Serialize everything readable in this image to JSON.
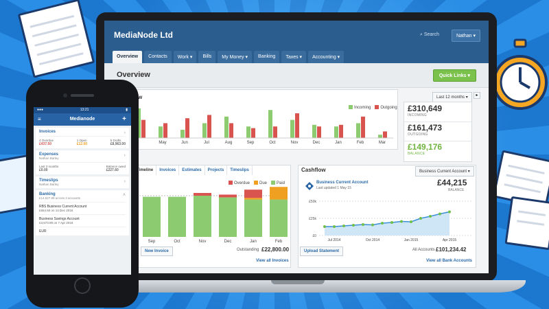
{
  "colors": {
    "accent": "#2b5d8f",
    "incoming": "#8dcb70",
    "outgoing": "#d9534f",
    "overdue": "#d9534f",
    "due": "#f0a020",
    "paid": "#8dcb70",
    "balance_green": "#6fb43f"
  },
  "app": {
    "title": "MediaNode Ltd",
    "search": "Search",
    "user": "Nathan"
  },
  "nav": [
    "Overview",
    "Contacts",
    "Work ▾",
    "Bills",
    "My Money ▾",
    "Banking",
    "Taxes ▾",
    "Accounting ▾"
  ],
  "page": {
    "title": "Overview",
    "quick_links": "Quick Links ▾"
  },
  "overview_panel": {
    "title": "w",
    "range": "Last 12 months",
    "legend_incoming": "Incoming",
    "legend_outgoing": "Outgoing",
    "stats": [
      {
        "value": "£310,649",
        "label": "INCOMING"
      },
      {
        "value": "£161,473",
        "label": "OUTGOING"
      },
      {
        "value": "£149,176",
        "label": "BALANCE"
      }
    ]
  },
  "chart_data": [
    {
      "type": "bar",
      "categories": [
        "",
        "May",
        "Jun",
        "Jul",
        "Aug",
        "Sep",
        "Oct",
        "Nov",
        "Dec",
        "Jan",
        "Feb",
        "Mar"
      ],
      "series": [
        {
          "name": "Incoming",
          "values": [
            9,
            3.5,
            2.5,
            4.5,
            6.5,
            3.5,
            8.5,
            5.5,
            4,
            3.5,
            4.5,
            1
          ]
        },
        {
          "name": "Outgoing",
          "values": [
            5.5,
            4.5,
            6,
            7,
            4.5,
            3,
            3.5,
            7.5,
            3.5,
            4,
            6.5,
            2
          ]
        }
      ]
    },
    {
      "type": "bar",
      "categories": [
        "",
        "Sep",
        "Oct",
        "Nov",
        "Dec",
        "Jan",
        "Feb"
      ],
      "series": [
        {
          "name": "Overdue",
          "values": [
            0,
            0,
            0,
            0.5,
            0.5,
            1.5,
            0
          ]
        },
        {
          "name": "Due",
          "values": [
            0,
            0,
            0,
            0,
            0,
            0.3,
            2.3
          ]
        },
        {
          "name": "Paid",
          "values": [
            8.3,
            7.3,
            7.3,
            7.5,
            7.2,
            6.8,
            6.8
          ]
        }
      ]
    },
    {
      "type": "line",
      "categories": [
        "",
        "Jul 2014",
        "",
        "",
        "",
        "Oct 2014",
        "",
        "",
        "",
        "Jan 2015",
        "",
        "",
        "",
        "Apr 2015"
      ],
      "yticks": [
        "£50k",
        "£25k",
        "£0"
      ],
      "series": [
        {
          "name": "",
          "values": [
            13,
            13,
            14,
            15,
            16,
            15.5,
            18,
            19,
            20.5,
            20,
            25,
            28,
            31.5,
            34.5
          ]
        }
      ]
    }
  ],
  "invoices_panel": {
    "tabs": [
      "Timeline",
      "Invoices",
      "Estimates",
      "Projects",
      "Timeslips"
    ],
    "legend": [
      "Overdue",
      "Due",
      "Paid"
    ],
    "new_invoice": "New Invoice",
    "outstanding_label": "Outstanding",
    "outstanding_value": "£22,800.00",
    "view_all": "View all Invoices"
  },
  "cashflow_panel": {
    "title": "Cashflow",
    "account_select": "Business Current Account",
    "account_name": "Business Current Account",
    "last_updated": "Last updated 1 May 15",
    "balance": "£44,215",
    "balance_label": "BALANCE",
    "upload": "Upload Statement",
    "all_accounts_label": "All Accounts",
    "all_accounts_value": "£101,234.42",
    "view_all": "View all Bank Accounts"
  },
  "phone": {
    "status_time": "13:21",
    "header": "Medianode",
    "invoices": {
      "title": "Invoices",
      "cols": [
        {
          "label": "4 Overdue",
          "value": "£437.50"
        },
        {
          "label": "1 Open",
          "value": "£12.00"
        },
        {
          "label": "5 Drafts",
          "value": "£8,963.00"
        }
      ]
    },
    "expenses": {
      "title": "Expenses",
      "sub": "Nathan Barley",
      "left_label": "Last 3 months",
      "left_value": "£0.00",
      "right_label": "Balance owed",
      "right_value": "£227.60"
    },
    "timeslips": {
      "title": "Timeslips",
      "sub": "Nathan Barley"
    },
    "banking": {
      "title": "Banking",
      "sub": "£14,527.89 across 3 accounts",
      "accounts": [
        {
          "name": "RBS Business Current Account",
          "detail": "£554.50 on 14 Dec 2016"
        },
        {
          "name": "Business Savings Account",
          "detail": "£3,573.99 on 7 Apr 2016"
        },
        {
          "name": "EUR",
          "detail": ""
        }
      ]
    }
  }
}
